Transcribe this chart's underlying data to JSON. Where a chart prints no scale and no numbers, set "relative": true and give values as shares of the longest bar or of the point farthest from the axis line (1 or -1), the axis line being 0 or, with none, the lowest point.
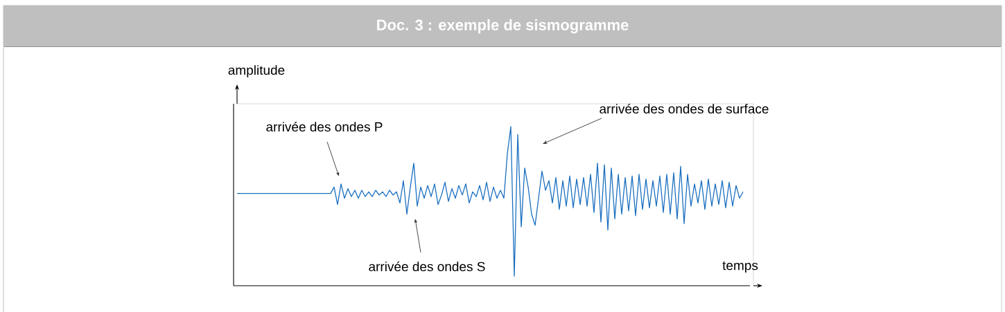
{
  "chart_data": {
    "type": "line",
    "title": "Doc. 3 : exemple de sismogramme",
    "xlabel": "temps",
    "ylabel": "amplitude",
    "relative": true,
    "color": "#1a6fc0",
    "marker": "none",
    "line_style": "solid",
    "categories": [
      null,
      null,
      null,
      null,
      null,
      null,
      null,
      null,
      null,
      null,
      null,
      null,
      null,
      null,
      null,
      null,
      null,
      null,
      null,
      null,
      null,
      null,
      null,
      null,
      null,
      null,
      null,
      null,
      null,
      null,
      null,
      null,
      null,
      null,
      null,
      null,
      null,
      null,
      null,
      null,
      null,
      null,
      null,
      null,
      null,
      null,
      null,
      null,
      null,
      null,
      null,
      null,
      null,
      null,
      null,
      null,
      null,
      null,
      null,
      null,
      null,
      null,
      null,
      null,
      null,
      null,
      null,
      null,
      null,
      null,
      null,
      null,
      null,
      null,
      null,
      null,
      null,
      null,
      null,
      null,
      null,
      null,
      null,
      null,
      null,
      null,
      null,
      null,
      null,
      null,
      null,
      null,
      null,
      null,
      null,
      null,
      null,
      null,
      null,
      null,
      null,
      null,
      null,
      null,
      null,
      null,
      null,
      null,
      null,
      null,
      null,
      null,
      null,
      null,
      null,
      null,
      null,
      null,
      null,
      null,
      null,
      null,
      null,
      null,
      null,
      null,
      null,
      null,
      null,
      null,
      null,
      null,
      null,
      null,
      null,
      null,
      null,
      null,
      null,
      null,
      null,
      null,
      null,
      null,
      null,
      null,
      null
    ],
    "values": [
      0.58,
      0.58,
      0.58,
      0.58,
      0.58,
      0.58,
      0.58,
      0.58,
      0.58,
      0.58,
      0.58,
      0.58,
      0.58,
      0.58,
      0.58,
      0.58,
      0.58,
      0.58,
      0.58,
      0.58,
      0.58,
      0.58,
      0.58,
      0.58,
      0.58,
      0.58,
      0.58,
      0.58,
      0.62,
      0.51,
      0.64,
      0.55,
      0.61,
      0.56,
      0.6,
      0.55,
      0.6,
      0.56,
      0.59,
      0.56,
      0.6,
      0.57,
      0.59,
      0.56,
      0.6,
      0.57,
      0.59,
      0.52,
      0.66,
      0.45,
      0.62,
      0.77,
      0.5,
      0.62,
      0.55,
      0.63,
      0.56,
      0.64,
      0.51,
      0.57,
      0.65,
      0.53,
      0.61,
      0.55,
      0.63,
      0.57,
      0.64,
      0.52,
      0.59,
      0.56,
      0.63,
      0.54,
      0.65,
      0.53,
      0.62,
      0.55,
      0.6,
      0.55,
      0.83,
      1.0,
      0.06,
      0.95,
      0.37,
      0.74,
      0.62,
      0.45,
      0.38,
      0.55,
      0.72,
      0.6,
      0.66,
      0.52,
      0.68,
      0.48,
      0.66,
      0.5,
      0.69,
      0.49,
      0.67,
      0.51,
      0.68,
      0.5,
      0.7,
      0.46,
      0.77,
      0.4,
      0.76,
      0.35,
      0.74,
      0.42,
      0.7,
      0.45,
      0.68,
      0.47,
      0.69,
      0.44,
      0.7,
      0.48,
      0.67,
      0.49,
      0.66,
      0.5,
      0.69,
      0.46,
      0.7,
      0.45,
      0.71,
      0.42,
      0.75,
      0.39,
      0.7,
      0.5,
      0.64,
      0.52,
      0.66,
      0.48,
      0.67,
      0.5,
      0.64,
      0.51,
      0.66,
      0.49,
      0.65,
      0.5,
      0.63,
      0.55,
      0.59
    ],
    "annotations": [
      "arrivée des ondes P",
      "arrivée des ondes S",
      "arrivée des ondes de surface"
    ]
  }
}
